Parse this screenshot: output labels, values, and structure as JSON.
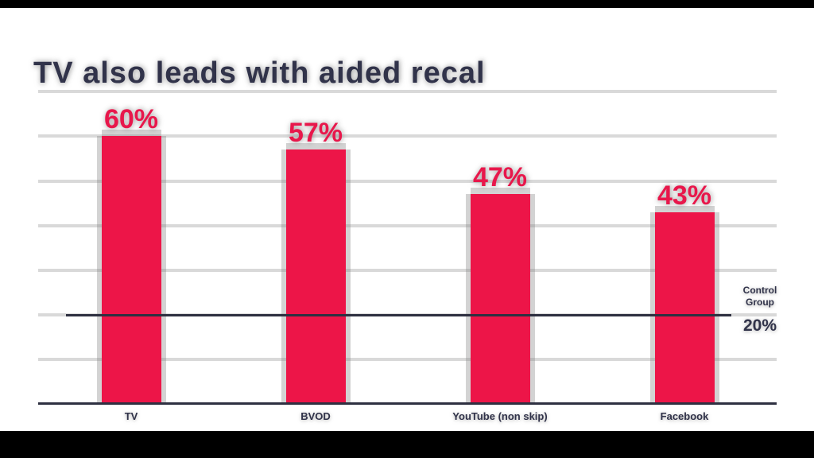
{
  "page": {
    "background": "#FFFFFF",
    "top_bar_color": "#000000",
    "bottom_bar_color": "#000000"
  },
  "chart_data": {
    "type": "bar",
    "title": "TV also leads with aided recal",
    "categories": [
      "TV",
      "BVOD",
      "YouTube (non skip)",
      "Facebook"
    ],
    "values": [
      60,
      57,
      47,
      43
    ],
    "value_labels": [
      "60%",
      "57%",
      "47%",
      "43%"
    ],
    "ylim": [
      0,
      70
    ],
    "gridline_values": [
      10,
      20,
      30,
      40,
      50,
      60,
      70
    ],
    "grid": true,
    "legend": false,
    "xlabel": "",
    "ylabel": "",
    "control_group": {
      "label_lines": [
        "Control",
        "Group"
      ],
      "value": 20,
      "value_label": "20%"
    },
    "colors": {
      "bar": "#ED1548",
      "value_label": "#E8174B",
      "text_dark": "#31334A",
      "gridline": "#D9D9D9",
      "control_line": "#2E3041",
      "axis_line": "#2E3041"
    }
  }
}
